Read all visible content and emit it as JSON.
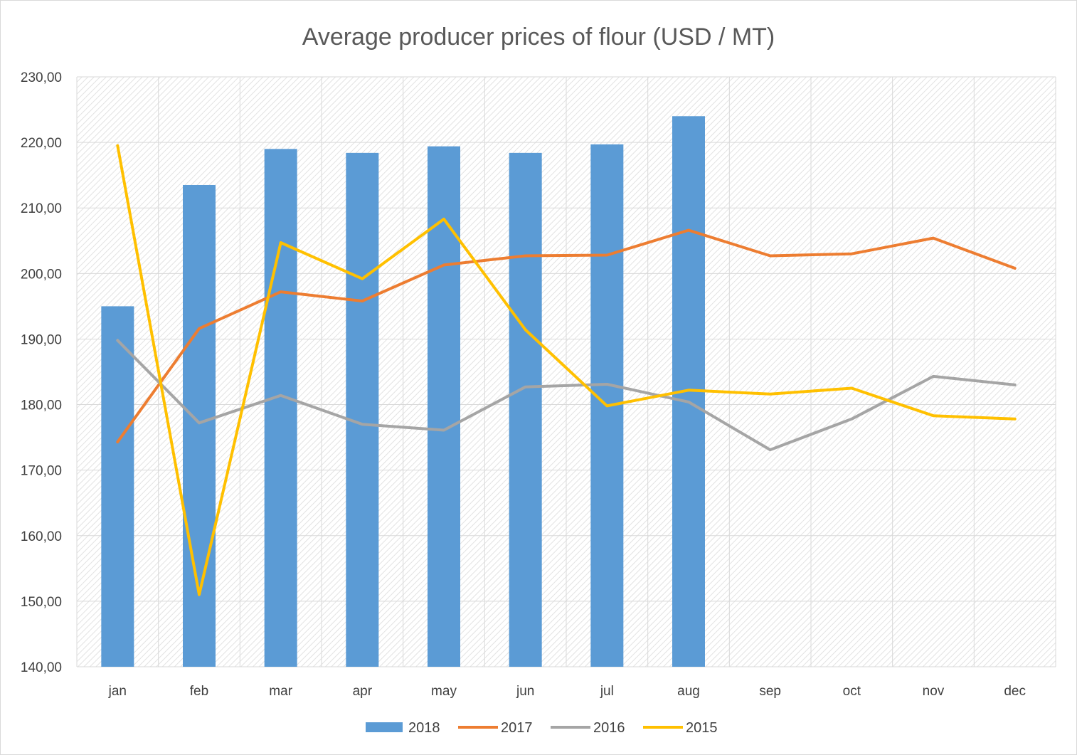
{
  "chart_data": {
    "type": "bar",
    "title": "Average producer prices of flour (USD / MT)",
    "xlabel": "",
    "ylabel": "",
    "categories": [
      "jan",
      "feb",
      "mar",
      "apr",
      "may",
      "jun",
      "jul",
      "aug",
      "sep",
      "oct",
      "nov",
      "dec"
    ],
    "ylim": [
      140,
      230
    ],
    "yticks": [
      140,
      150,
      160,
      170,
      180,
      190,
      200,
      210,
      220,
      230
    ],
    "ytick_labels": [
      "140,00",
      "150,00",
      "160,00",
      "170,00",
      "180,00",
      "190,00",
      "200,00",
      "210,00",
      "220,00",
      "230,00"
    ],
    "grid": true,
    "legend_position": "bottom",
    "series": [
      {
        "name": "2018",
        "type": "bar",
        "color": "#5b9bd5",
        "values": [
          195.0,
          213.5,
          219.0,
          218.4,
          219.4,
          218.4,
          219.7,
          224.0,
          null,
          null,
          null,
          null
        ]
      },
      {
        "name": "2017",
        "type": "line",
        "color": "#ed7d31",
        "values": [
          174.3,
          191.6,
          197.2,
          195.8,
          201.3,
          202.7,
          202.8,
          206.6,
          202.7,
          203.0,
          205.4,
          200.8
        ]
      },
      {
        "name": "2016",
        "type": "line",
        "color": "#a5a5a5",
        "values": [
          189.8,
          177.2,
          181.4,
          177.0,
          176.1,
          182.7,
          183.1,
          180.4,
          173.1,
          177.8,
          184.3,
          183.0
        ]
      },
      {
        "name": "2015",
        "type": "line",
        "color": "#ffc000",
        "values": [
          219.5,
          151.0,
          204.7,
          199.2,
          208.3,
          191.4,
          179.8,
          182.2,
          181.6,
          182.5,
          178.3,
          177.8
        ]
      }
    ]
  }
}
